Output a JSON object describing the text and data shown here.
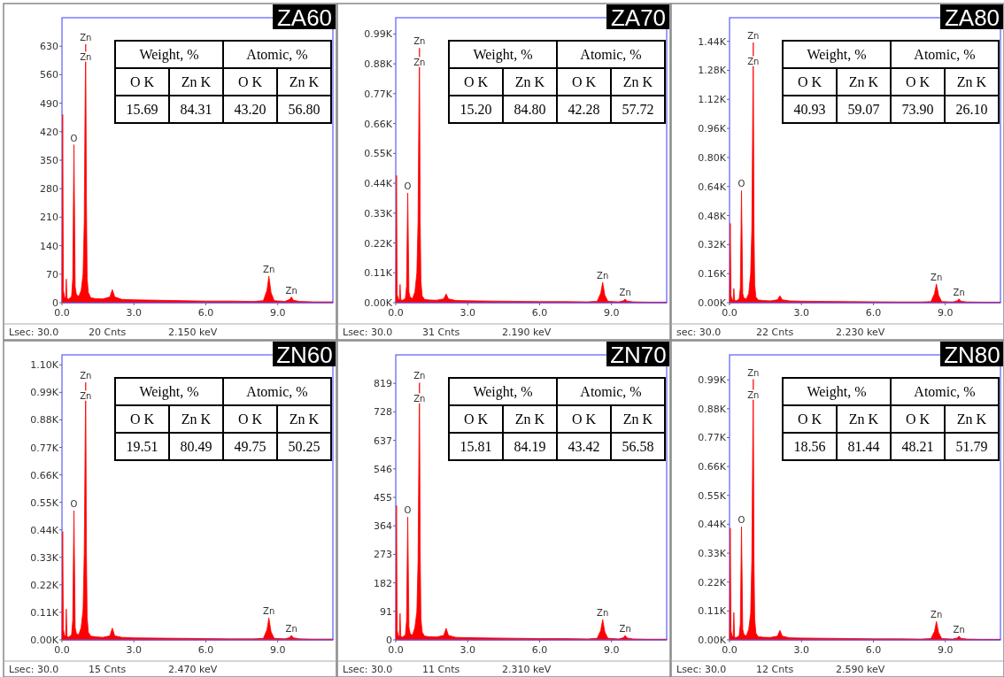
{
  "chart_data": [
    {
      "type": "area",
      "title": "ZA60",
      "annotations": [
        "Weight, %",
        "Atomic, %",
        "O K",
        "Zn K",
        "O K",
        "Zn K",
        "15.69",
        "84.31",
        "43.20",
        "56.80",
        "Lsec: 30.0",
        "20 Cnts",
        "2.150 keV",
        {
          "text": "Zn",
          "x": 0.99,
          "y": 635
        },
        {
          "text": "Zn",
          "x": 0.99,
          "y": 588
        },
        {
          "text": "O",
          "x": 0.5,
          "y": 388
        },
        {
          "text": "Zn",
          "x": 8.63,
          "y": 65
        },
        {
          "text": "Zn",
          "x": 9.57,
          "y": 14
        }
      ],
      "x": [
        0,
        0.03,
        0.06,
        0.1,
        0.15,
        0.18,
        0.21,
        0.26,
        0.3,
        0.4,
        0.45,
        0.5,
        0.55,
        0.6,
        0.7,
        0.8,
        0.88,
        0.93,
        0.96,
        0.99,
        1.02,
        1.05,
        1.1,
        1.2,
        1.4,
        1.7,
        2.0,
        2.1,
        2.2,
        2.5,
        3.0,
        4.0,
        5.0,
        6.0,
        7.0,
        8.0,
        8.4,
        8.55,
        8.63,
        8.72,
        8.85,
        9.3,
        9.5,
        9.57,
        9.65,
        9.9,
        10.5,
        11.3
      ],
      "series": [
        {
          "color": "#ff0000",
          "values": [
            0,
            462,
            30,
            15,
            10,
            58,
            12,
            8,
            10,
            15,
            60,
            388,
            40,
            20,
            15,
            30,
            70,
            200,
            450,
            635,
            250,
            60,
            25,
            12,
            10,
            9,
            14,
            32,
            14,
            8,
            7,
            6,
            5,
            4,
            4,
            3,
            5,
            30,
            65,
            25,
            5,
            3,
            8,
            14,
            6,
            3,
            2,
            2
          ]
        }
      ],
      "xlim": [
        0,
        11.3
      ],
      "xticks": [
        {
          "value": 0,
          "label": "0.0"
        },
        {
          "value": 3,
          "label": "3.0"
        },
        {
          "value": 6,
          "label": "6.0"
        },
        {
          "value": 9,
          "label": "9.0"
        }
      ],
      "ylim": [
        0,
        700
      ],
      "yticks": [
        0,
        70,
        140,
        210,
        280,
        350,
        420,
        490,
        560,
        630
      ]
    },
    {
      "type": "area",
      "title": "ZA70",
      "annotations": [
        "Weight, %",
        "Atomic, %",
        "O K",
        "Zn K",
        "O K",
        "Zn K",
        "15.20",
        "84.80",
        "42.28",
        "57.72",
        "Lsec: 30.0",
        "31 Cnts",
        "2.190 keV",
        {
          "text": "Zn",
          "x": 0.99,
          "y": 938
        },
        {
          "text": "Zn",
          "x": 0.99,
          "y": 860
        },
        {
          "text": "O",
          "x": 0.5,
          "y": 404
        },
        {
          "text": "Zn",
          "x": 8.63,
          "y": 75
        },
        {
          "text": "Zn",
          "x": 9.57,
          "y": 13
        }
      ],
      "x": [
        0,
        0.03,
        0.06,
        0.1,
        0.15,
        0.18,
        0.21,
        0.26,
        0.3,
        0.4,
        0.45,
        0.5,
        0.55,
        0.6,
        0.7,
        0.8,
        0.88,
        0.93,
        0.96,
        0.99,
        1.02,
        1.05,
        1.1,
        1.2,
        1.4,
        1.7,
        2.0,
        2.1,
        2.2,
        2.5,
        3.0,
        4.0,
        5.0,
        6.0,
        7.0,
        8.0,
        8.4,
        8.55,
        8.63,
        8.72,
        8.85,
        9.3,
        9.5,
        9.57,
        9.65,
        9.9,
        10.5,
        11.3
      ],
      "series": [
        {
          "color": "#ff0000",
          "values": [
            0,
            469,
            30,
            15,
            10,
            67,
            12,
            8,
            10,
            15,
            60,
            404,
            40,
            20,
            15,
            40,
            110,
            300,
            650,
            938,
            300,
            80,
            25,
            12,
            10,
            9,
            14,
            32,
            14,
            8,
            7,
            6,
            5,
            4,
            4,
            3,
            5,
            35,
            75,
            28,
            5,
            3,
            7,
            13,
            6,
            3,
            2,
            2
          ]
        }
      ],
      "xlim": [
        0,
        11.3
      ],
      "xticks": [
        {
          "value": 0,
          "label": "0.0"
        },
        {
          "value": 3,
          "label": "3.0"
        },
        {
          "value": 6,
          "label": "6.0"
        },
        {
          "value": 9,
          "label": "9.0"
        }
      ],
      "ylim": [
        0,
        1050
      ],
      "yticks": [
        {
          "value": 0,
          "label": "0.00K"
        },
        {
          "value": 110,
          "label": "0.11K"
        },
        {
          "value": 220,
          "label": "0.22K"
        },
        {
          "value": 330,
          "label": "0.33K"
        },
        {
          "value": 440,
          "label": "0.44K"
        },
        {
          "value": 550,
          "label": "0.55K"
        },
        {
          "value": 660,
          "label": "0.66K"
        },
        {
          "value": 770,
          "label": "0.77K"
        },
        {
          "value": 880,
          "label": "0.88K"
        },
        {
          "value": 990,
          "label": "0.99K"
        }
      ]
    },
    {
      "type": "area",
      "title": "ZA80",
      "annotations": [
        "Weight, %",
        "Atomic, %",
        "O K",
        "Zn K",
        "O K",
        "Zn K",
        "40.93",
        "59.07",
        "73.90",
        "26.10",
        "sec: 30.0",
        "22 Cnts",
        "2.230 keV",
        {
          "text": "Zn",
          "x": 0.99,
          "y": 1433
        },
        {
          "text": "Zn",
          "x": 0.99,
          "y": 1290
        },
        {
          "text": "O",
          "x": 0.5,
          "y": 617
        },
        {
          "text": "Zn",
          "x": 8.63,
          "y": 103
        },
        {
          "text": "Zn",
          "x": 9.57,
          "y": 21
        }
      ],
      "x": [
        0,
        0.03,
        0.06,
        0.1,
        0.15,
        0.18,
        0.21,
        0.26,
        0.3,
        0.4,
        0.45,
        0.5,
        0.55,
        0.6,
        0.7,
        0.8,
        0.88,
        0.93,
        0.96,
        0.99,
        1.02,
        1.05,
        1.1,
        1.2,
        1.4,
        1.7,
        2.0,
        2.1,
        2.2,
        2.5,
        3.0,
        4.0,
        5.0,
        6.0,
        7.0,
        8.0,
        8.4,
        8.55,
        8.63,
        8.72,
        8.85,
        9.3,
        9.5,
        9.57,
        9.65,
        9.9,
        10.5,
        11.3
      ],
      "series": [
        {
          "color": "#ff0000",
          "values": [
            0,
            437,
            40,
            20,
            12,
            78,
            15,
            10,
            12,
            20,
            80,
            617,
            50,
            25,
            20,
            50,
            160,
            400,
            900,
            1433,
            400,
            100,
            30,
            15,
            12,
            10,
            16,
            38,
            16,
            10,
            8,
            7,
            6,
            5,
            4,
            4,
            6,
            50,
            103,
            40,
            6,
            4,
            10,
            21,
            8,
            4,
            3,
            3
          ]
        }
      ],
      "xlim": [
        0,
        11.3
      ],
      "xticks": [
        {
          "value": 0,
          "label": "0.0"
        },
        {
          "value": 3,
          "label": "3.0"
        },
        {
          "value": 6,
          "label": "6.0"
        },
        {
          "value": 9,
          "label": "9.0"
        }
      ],
      "ylim": [
        0,
        1570
      ],
      "yticks": [
        {
          "value": 0,
          "label": "0.00K"
        },
        {
          "value": 160,
          "label": "0.16K"
        },
        {
          "value": 320,
          "label": "0.32K"
        },
        {
          "value": 480,
          "label": "0.48K"
        },
        {
          "value": 640,
          "label": "0.64K"
        },
        {
          "value": 800,
          "label": "0.80K"
        },
        {
          "value": 960,
          "label": "0.96K"
        },
        {
          "value": 1120,
          "label": "1.12K"
        },
        {
          "value": 1280,
          "label": "1.28K"
        },
        {
          "value": 1440,
          "label": "1.44K"
        }
      ]
    },
    {
      "type": "area",
      "title": "ZN60",
      "annotations": [
        "Weight, %",
        "Atomic, %",
        "O K",
        "Zn K",
        "O K",
        "Zn K",
        "19.51",
        "80.49",
        "49.75",
        "50.25",
        "Lsec: 30.0",
        "15 Cnts",
        "2.470 keV",
        {
          "text": "Zn",
          "x": 0.99,
          "y": 1030
        },
        {
          "text": "Zn",
          "x": 0.99,
          "y": 950
        },
        {
          "text": "O",
          "x": 0.5,
          "y": 517
        },
        {
          "text": "Zn",
          "x": 8.63,
          "y": 88
        },
        {
          "text": "Zn",
          "x": 9.57,
          "y": 18
        }
      ],
      "x": [
        0,
        0.03,
        0.06,
        0.1,
        0.15,
        0.18,
        0.21,
        0.26,
        0.3,
        0.4,
        0.45,
        0.5,
        0.55,
        0.6,
        0.7,
        0.8,
        0.88,
        0.93,
        0.96,
        0.99,
        1.02,
        1.05,
        1.1,
        1.2,
        1.4,
        1.7,
        2.0,
        2.1,
        2.2,
        2.5,
        3.0,
        4.0,
        5.0,
        6.0,
        7.0,
        8.0,
        8.4,
        8.55,
        8.63,
        8.72,
        8.85,
        9.3,
        9.5,
        9.57,
        9.65,
        9.9,
        10.5,
        11.3
      ],
      "series": [
        {
          "color": "#ff0000",
          "values": [
            0,
            433,
            40,
            20,
            12,
            123,
            15,
            10,
            12,
            20,
            80,
            517,
            50,
            25,
            20,
            50,
            120,
            350,
            700,
            1030,
            350,
            90,
            30,
            15,
            12,
            10,
            16,
            47,
            16,
            10,
            8,
            7,
            6,
            5,
            4,
            4,
            6,
            40,
            88,
            32,
            6,
            4,
            9,
            18,
            8,
            4,
            3,
            3
          ]
        }
      ],
      "xlim": [
        0,
        11.3
      ],
      "xticks": [
        {
          "value": 0,
          "label": "0.0"
        },
        {
          "value": 3,
          "label": "3.0"
        },
        {
          "value": 6,
          "label": "6.0"
        },
        {
          "value": 9,
          "label": "9.0"
        }
      ],
      "ylim": [
        0,
        1140
      ],
      "yticks": [
        {
          "value": 0,
          "label": "0.00K"
        },
        {
          "value": 110,
          "label": "0.11K"
        },
        {
          "value": 220,
          "label": "0.22K"
        },
        {
          "value": 330,
          "label": "0.33K"
        },
        {
          "value": 440,
          "label": "0.44K"
        },
        {
          "value": 550,
          "label": "0.55K"
        },
        {
          "value": 660,
          "label": "0.66K"
        },
        {
          "value": 770,
          "label": "0.77K"
        },
        {
          "value": 880,
          "label": "0.88K"
        },
        {
          "value": 990,
          "label": "0.99K"
        },
        {
          "value": 1100,
          "label": "1.10K"
        }
      ]
    },
    {
      "type": "area",
      "title": "ZN70",
      "annotations": [
        "Weight, %",
        "Atomic, %",
        "O K",
        "Zn K",
        "O K",
        "Zn K",
        "15.81",
        "84.19",
        "43.42",
        "56.58",
        "Lsec: 30.0",
        "11 Cnts",
        "2.310 keV",
        {
          "text": "Zn",
          "x": 0.99,
          "y": 821
        },
        {
          "text": "Zn",
          "x": 0.99,
          "y": 750
        },
        {
          "text": "O",
          "x": 0.5,
          "y": 392
        },
        {
          "text": "Zn",
          "x": 8.63,
          "y": 65
        },
        {
          "text": "Zn",
          "x": 9.57,
          "y": 14
        }
      ],
      "x": [
        0,
        0.03,
        0.06,
        0.1,
        0.15,
        0.18,
        0.21,
        0.26,
        0.3,
        0.4,
        0.45,
        0.5,
        0.55,
        0.6,
        0.7,
        0.8,
        0.88,
        0.93,
        0.96,
        0.99,
        1.02,
        1.05,
        1.1,
        1.2,
        1.4,
        1.7,
        2.0,
        2.1,
        2.2,
        2.5,
        3.0,
        4.0,
        5.0,
        6.0,
        7.0,
        8.0,
        8.4,
        8.55,
        8.63,
        8.72,
        8.85,
        9.3,
        9.5,
        9.57,
        9.65,
        9.9,
        10.5,
        11.3
      ],
      "series": [
        {
          "color": "#ff0000",
          "values": [
            0,
            429,
            30,
            15,
            10,
            84,
            12,
            8,
            10,
            15,
            60,
            392,
            40,
            20,
            15,
            40,
            90,
            250,
            550,
            821,
            280,
            70,
            25,
            12,
            10,
            9,
            14,
            37,
            14,
            8,
            7,
            6,
            5,
            4,
            4,
            3,
            5,
            30,
            65,
            25,
            5,
            3,
            7,
            14,
            6,
            3,
            2,
            2
          ]
        }
      ],
      "xlim": [
        0,
        11.3
      ],
      "xticks": [
        {
          "value": 0,
          "label": "0.0"
        },
        {
          "value": 3,
          "label": "3.0"
        },
        {
          "value": 6,
          "label": "6.0"
        },
        {
          "value": 9,
          "label": "9.0"
        }
      ],
      "ylim": [
        0,
        910
      ],
      "yticks": [
        0,
        91,
        182,
        273,
        364,
        455,
        546,
        637,
        728,
        819
      ]
    },
    {
      "type": "area",
      "title": "ZN80",
      "annotations": [
        "Weight, %",
        "Atomic, %",
        "O K",
        "Zn K",
        "O K",
        "Zn K",
        "18.56",
        "81.44",
        "48.21",
        "51.79",
        "Lsec: 30.0",
        "12 Cnts",
        "2.590 keV",
        {
          "text": "Zn",
          "x": 0.99,
          "y": 992
        },
        {
          "text": "Zn",
          "x": 0.99,
          "y": 905
        },
        {
          "text": "O",
          "x": 0.5,
          "y": 431
        },
        {
          "text": "Zn",
          "x": 8.63,
          "y": 70
        },
        {
          "text": "Zn",
          "x": 9.57,
          "y": 14
        }
      ],
      "x": [
        0,
        0.03,
        0.06,
        0.1,
        0.15,
        0.18,
        0.21,
        0.26,
        0.3,
        0.4,
        0.45,
        0.5,
        0.55,
        0.6,
        0.7,
        0.8,
        0.88,
        0.93,
        0.96,
        0.99,
        1.02,
        1.05,
        1.1,
        1.2,
        1.4,
        1.7,
        2.0,
        2.1,
        2.2,
        2.5,
        3.0,
        4.0,
        5.0,
        6.0,
        7.0,
        8.0,
        8.4,
        8.55,
        8.63,
        8.72,
        8.85,
        9.3,
        9.5,
        9.57,
        9.65,
        9.9,
        10.5,
        11.3
      ],
      "series": [
        {
          "color": "#ff0000",
          "values": [
            0,
            425,
            35,
            18,
            10,
            104,
            12,
            8,
            10,
            15,
            60,
            431,
            40,
            20,
            15,
            40,
            100,
            300,
            650,
            992,
            300,
            80,
            25,
            12,
            10,
            9,
            14,
            36,
            14,
            8,
            7,
            6,
            5,
            4,
            4,
            3,
            5,
            32,
            70,
            27,
            5,
            3,
            7,
            14,
            6,
            3,
            2,
            2
          ]
        }
      ],
      "xlim": [
        0,
        11.3
      ],
      "xticks": [
        {
          "value": 0,
          "label": "0.0"
        },
        {
          "value": 3,
          "label": "3.0"
        },
        {
          "value": 6,
          "label": "6.0"
        },
        {
          "value": 9,
          "label": "9.0"
        }
      ],
      "ylim": [
        0,
        1085
      ],
      "yticks": [
        {
          "value": 0,
          "label": "0.00K"
        },
        {
          "value": 110,
          "label": "0.11K"
        },
        {
          "value": 220,
          "label": "0.22K"
        },
        {
          "value": 330,
          "label": "0.33K"
        },
        {
          "value": 440,
          "label": "0.44K"
        },
        {
          "value": 550,
          "label": "0.55K"
        },
        {
          "value": 660,
          "label": "0.66K"
        },
        {
          "value": 770,
          "label": "0.77K"
        },
        {
          "value": 880,
          "label": "0.88K"
        },
        {
          "value": 990,
          "label": "0.99K"
        }
      ]
    }
  ]
}
